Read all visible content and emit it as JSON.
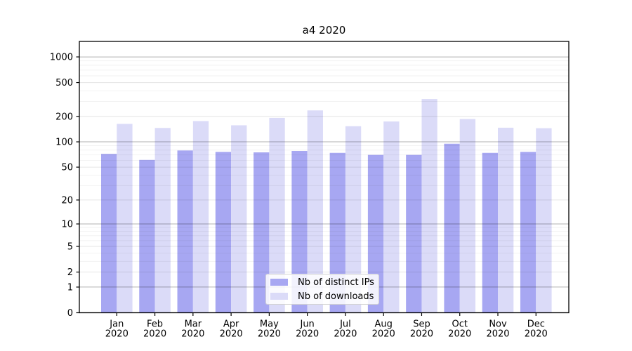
{
  "title": "a4 2020",
  "chart_data": {
    "type": "bar",
    "title": "a4 2020",
    "categories": [
      "Jan",
      "Feb",
      "Mar",
      "Apr",
      "May",
      "Jun",
      "Jul",
      "Aug",
      "Sep",
      "Oct",
      "Nov",
      "Dec"
    ],
    "x_year_label": "2020",
    "series": [
      {
        "name": "Nb of distinct IPs",
        "color": "#a7a7f2",
        "values": [
          72,
          61,
          79,
          76,
          75,
          78,
          74,
          70,
          70,
          95,
          74,
          76
        ]
      },
      {
        "name": "Nb of downloads",
        "color": "#dbdbf8",
        "values": [
          163,
          146,
          176,
          157,
          192,
          235,
          153,
          174,
          320,
          186,
          147,
          145
        ]
      }
    ],
    "yticks": [
      0,
      1,
      2,
      5,
      10,
      20,
      50,
      100,
      200,
      500,
      1000
    ],
    "yscale": "symlog",
    "ylim": [
      0,
      1500
    ],
    "grid": "on",
    "emphasized_gridlines": [
      1,
      10,
      100,
      1000
    ],
    "legend_position": "inside lower center",
    "axis_color": "#000000"
  }
}
